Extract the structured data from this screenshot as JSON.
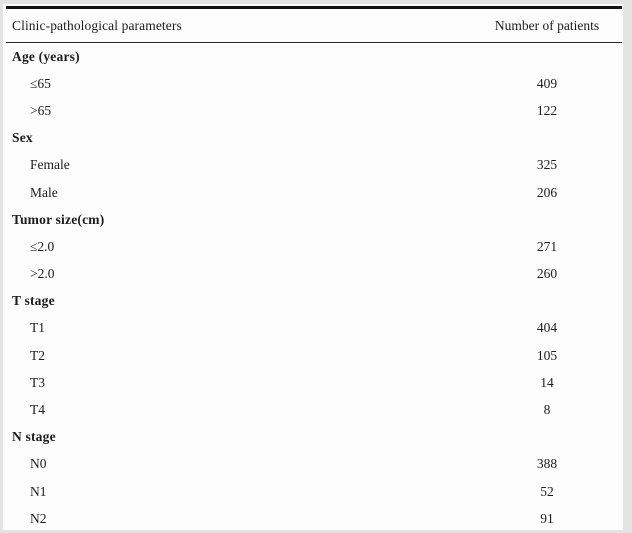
{
  "colors": {
    "frame": "#e4e4e4",
    "paper": "#fdfdfd",
    "text": "#1c1c1c",
    "rule": "#141414"
  },
  "table": {
    "col1_header": "Clinic-pathological parameters",
    "col2_header": "Number of patients",
    "sections": [
      {
        "label": "Age (years)",
        "rows": [
          {
            "label": "≤65",
            "value": "409"
          },
          {
            "label": ">65",
            "value": "122"
          }
        ]
      },
      {
        "label": "Sex",
        "rows": [
          {
            "label": "Female",
            "value": "325"
          },
          {
            "label": "Male",
            "value": "206"
          }
        ]
      },
      {
        "label": "Tumor size(cm)",
        "rows": [
          {
            "label": "≤2.0",
            "value": "271"
          },
          {
            "label": ">2.0",
            "value": "260"
          }
        ]
      },
      {
        "label": "T stage",
        "rows": [
          {
            "label": "T1",
            "value": "404"
          },
          {
            "label": "T2",
            "value": "105"
          },
          {
            "label": "T3",
            "value": "14"
          },
          {
            "label": "T4",
            "value": "8"
          }
        ]
      },
      {
        "label": "N stage",
        "rows": [
          {
            "label": "N0",
            "value": "388"
          },
          {
            "label": "N1",
            "value": "52"
          },
          {
            "label": "N2",
            "value": "91"
          }
        ]
      }
    ]
  }
}
